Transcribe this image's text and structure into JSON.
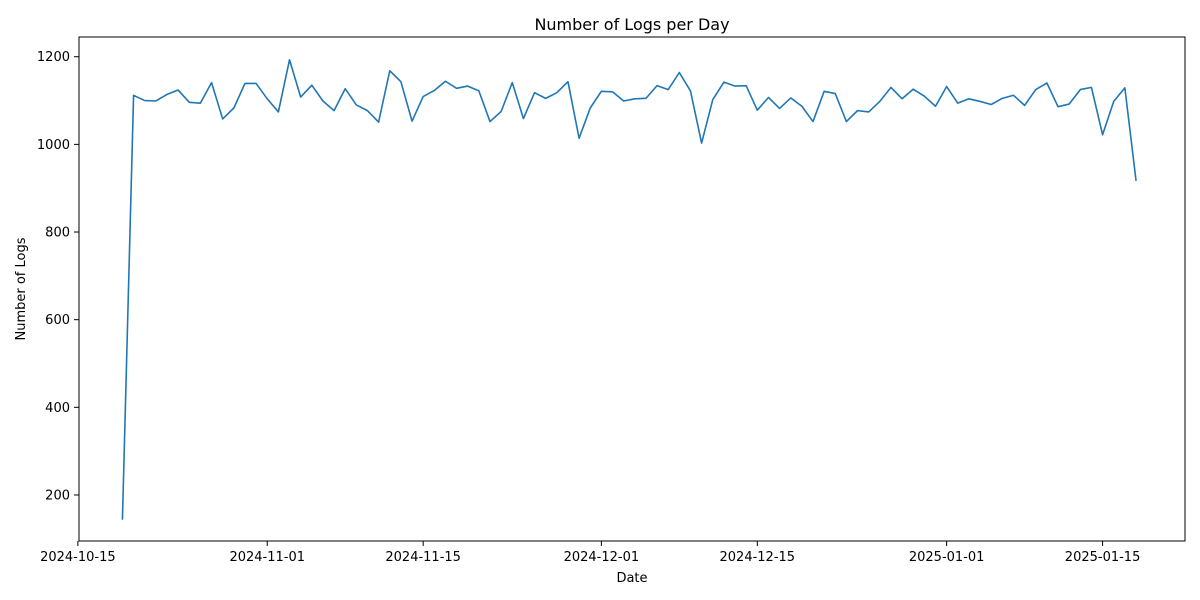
{
  "chart_data": {
    "type": "line",
    "title": "Number of Logs per Day",
    "xlabel": "Date",
    "ylabel": "Number of Logs",
    "x_ticks": [
      "2024-10-15",
      "2024-11-01",
      "2024-11-15",
      "2024-12-01",
      "2024-12-15",
      "2025-01-01",
      "2025-01-15"
    ],
    "y_ticks": [
      200,
      400,
      600,
      800,
      1000,
      1200
    ],
    "xlim": [
      "2024-10-15",
      "2025-01-22"
    ],
    "ylim": [
      95,
      1245
    ],
    "grid": false,
    "line_color": "#1f77b4",
    "series": [
      {
        "x": [
          "2024-10-19",
          "2024-10-20",
          "2024-10-21",
          "2024-10-22",
          "2024-10-23",
          "2024-10-24",
          "2024-10-25",
          "2024-10-26",
          "2024-10-27",
          "2024-10-28",
          "2024-10-29",
          "2024-10-30",
          "2024-10-31",
          "2024-11-01",
          "2024-11-02",
          "2024-11-03",
          "2024-11-04",
          "2024-11-05",
          "2024-11-06",
          "2024-11-07",
          "2024-11-08",
          "2024-11-09",
          "2024-11-10",
          "2024-11-11",
          "2024-11-12",
          "2024-11-13",
          "2024-11-14",
          "2024-11-15",
          "2024-11-16",
          "2024-11-17",
          "2024-11-18",
          "2024-11-19",
          "2024-11-20",
          "2024-11-21",
          "2024-11-22",
          "2024-11-23",
          "2024-11-24",
          "2024-11-25",
          "2024-11-26",
          "2024-11-27",
          "2024-11-28",
          "2024-11-29",
          "2024-11-30",
          "2024-12-01",
          "2024-12-02",
          "2024-12-03",
          "2024-12-04",
          "2024-12-05",
          "2024-12-06",
          "2024-12-07",
          "2024-12-08",
          "2024-12-09",
          "2024-12-10",
          "2024-12-11",
          "2024-12-12",
          "2024-12-13",
          "2024-12-14",
          "2024-12-15",
          "2024-12-16",
          "2024-12-17",
          "2024-12-18",
          "2024-12-19",
          "2024-12-20",
          "2024-12-21",
          "2024-12-22",
          "2024-12-23",
          "2024-12-24",
          "2024-12-25",
          "2024-12-26",
          "2024-12-27",
          "2024-12-28",
          "2024-12-29",
          "2024-12-30",
          "2024-12-31",
          "2025-01-01",
          "2025-01-02",
          "2025-01-03",
          "2025-01-04",
          "2025-01-05",
          "2025-01-06",
          "2025-01-07",
          "2025-01-08",
          "2025-01-09",
          "2025-01-10",
          "2025-01-11",
          "2025-01-12",
          "2025-01-13",
          "2025-01-14",
          "2025-01-15",
          "2025-01-16",
          "2025-01-17",
          "2025-01-18"
        ],
        "values": [
          145,
          1112,
          1100,
          1099,
          1114,
          1124,
          1096,
          1094,
          1141,
          1058,
          1083,
          1139,
          1139,
          1104,
          1074,
          1193,
          1108,
          1135,
          1099,
          1077,
          1127,
          1090,
          1077,
          1051,
          1168,
          1143,
          1053,
          1109,
          1123,
          1144,
          1128,
          1133,
          1122,
          1052,
          1075,
          1141,
          1059,
          1118,
          1105,
          1118,
          1143,
          1014,
          1083,
          1121,
          1120,
          1099,
          1104,
          1105,
          1134,
          1125,
          1164,
          1122,
          1003,
          1102,
          1142,
          1133,
          1134,
          1078,
          1107,
          1082,
          1106,
          1087,
          1052,
          1121,
          1116,
          1052,
          1077,
          1074,
          1098,
          1130,
          1104,
          1126,
          1110,
          1087,
          1132,
          1094,
          1104,
          1098,
          1091,
          1105,
          1112,
          1089,
          1125,
          1140,
          1086,
          1092,
          1125,
          1130,
          1022,
          1098,
          1129,
          918
        ]
      }
    ]
  }
}
